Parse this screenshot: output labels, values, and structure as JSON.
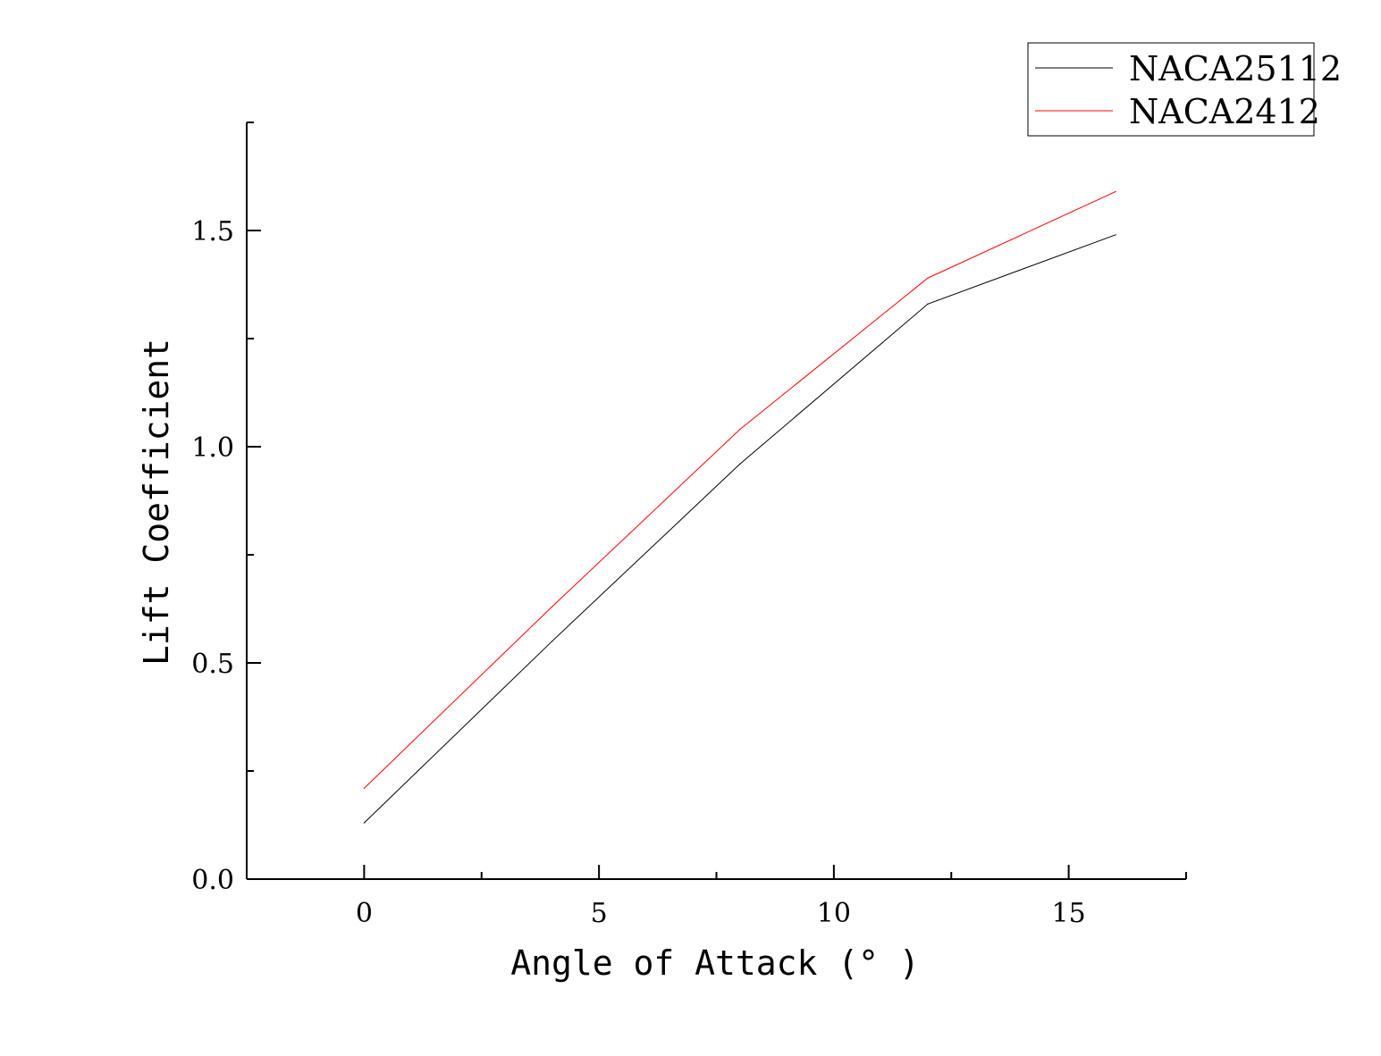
{
  "chart_data": {
    "type": "line",
    "title": "",
    "xlabel": "Angle of Attack (° )",
    "ylabel": "Lift Coefficient",
    "xlim": [
      -2.5,
      17.5
    ],
    "ylim": [
      0,
      1.75
    ],
    "xticks": [
      0,
      5,
      10,
      15
    ],
    "xtick_labels": [
      "0",
      "5",
      "10",
      "15"
    ],
    "yticks": [
      0,
      0.5,
      1.0,
      1.5
    ],
    "ytick_labels": [
      "0.0",
      "0.5",
      "1.0",
      "1.5"
    ],
    "x_minor_ticks": [
      2.5,
      7.5,
      12.5,
      17.5
    ],
    "y_minor_ticks": [
      0.25,
      0.75,
      1.25,
      1.75
    ],
    "grid": false,
    "legend_position": "top-right",
    "series": [
      {
        "name": "NACA25112",
        "color": "#000000",
        "x": [
          0,
          4,
          8,
          12,
          16
        ],
        "y": [
          0.13,
          0.55,
          0.96,
          1.33,
          1.49
        ]
      },
      {
        "name": "NACA2412",
        "color": "#ff0000",
        "x": [
          0,
          4,
          8,
          12,
          16
        ],
        "y": [
          0.21,
          0.63,
          1.04,
          1.39,
          1.59
        ]
      }
    ]
  }
}
